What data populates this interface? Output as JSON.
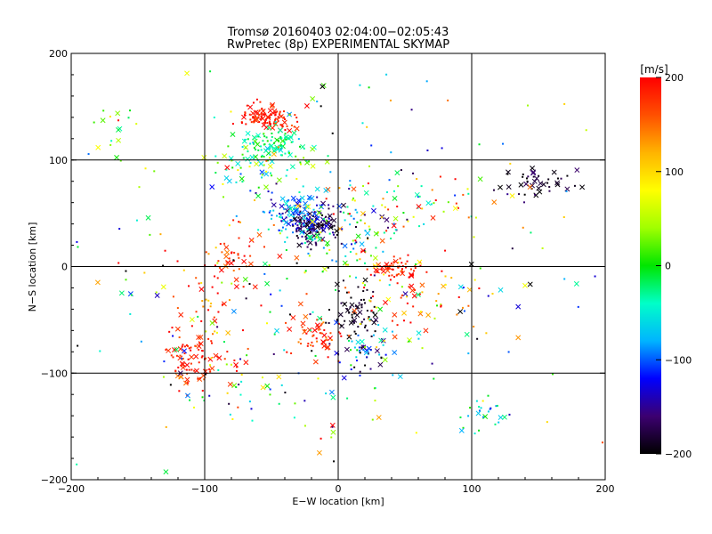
{
  "chart_data": {
    "type": "scatter",
    "title": "Tromsø 20160403 02:04:00−02:05:43",
    "subtitle": "RwPretec (8p) EXPERIMENTAL SKYMAP",
    "xlabel": "E−W location [km]",
    "ylabel": "N−S location [km]",
    "xlim": [
      -200,
      200
    ],
    "ylim": [
      -200,
      200
    ],
    "xticks": [
      "−200",
      "−100",
      "0",
      "100",
      "200"
    ],
    "yticks": [
      "−200",
      "−100",
      "0",
      "100",
      "200"
    ],
    "grid": true,
    "colorbar": {
      "unit": "[m/s]",
      "range": [
        -200,
        200
      ],
      "ticks": [
        "−200",
        "−100",
        "0",
        "100",
        "200"
      ],
      "colors": [
        "#000000",
        "#3c0070",
        "#0000ff",
        "#00b4ff",
        "#00ffc8",
        "#00e600",
        "#a0ff00",
        "#ffff00",
        "#ffb400",
        "#ff5000",
        "#ff0000"
      ]
    },
    "clusters": [
      {
        "x": -50,
        "y": 140,
        "sx": 10,
        "sy": 6,
        "n": 110,
        "v": 190,
        "vs": 15
      },
      {
        "x": -50,
        "y": 115,
        "sx": 12,
        "sy": 8,
        "n": 90,
        "v": -30,
        "vs": 20
      },
      {
        "x": -60,
        "y": 95,
        "sx": 20,
        "sy": 12,
        "n": 60,
        "v": 10,
        "vs": 60
      },
      {
        "x": -20,
        "y": 38,
        "sx": 9,
        "sy": 9,
        "n": 150,
        "v": -170,
        "vs": 25
      },
      {
        "x": -35,
        "y": 50,
        "sx": 12,
        "sy": 10,
        "n": 90,
        "v": -90,
        "vs": 30
      },
      {
        "x": 5,
        "y": 30,
        "sx": 22,
        "sy": 25,
        "n": 110,
        "v": -20,
        "vs": 90
      },
      {
        "x": 45,
        "y": -2,
        "sx": 8,
        "sy": 6,
        "n": 55,
        "v": 185,
        "vs": 15
      },
      {
        "x": 15,
        "y": -45,
        "sx": 10,
        "sy": 12,
        "n": 70,
        "v": -190,
        "vs": 10
      },
      {
        "x": -15,
        "y": -65,
        "sx": 10,
        "sy": 10,
        "n": 55,
        "v": 180,
        "vs": 20
      },
      {
        "x": 20,
        "y": -80,
        "sx": 10,
        "sy": 10,
        "n": 50,
        "v": -110,
        "vs": 60
      },
      {
        "x": -110,
        "y": -85,
        "sx": 9,
        "sy": 12,
        "n": 75,
        "v": 185,
        "vs": 15
      },
      {
        "x": -100,
        "y": -40,
        "sx": 15,
        "sy": 25,
        "n": 40,
        "v": 150,
        "vs": 50
      },
      {
        "x": -80,
        "y": 10,
        "sx": 10,
        "sy": 15,
        "n": 45,
        "v": 170,
        "vs": 30
      },
      {
        "x": 145,
        "y": 80,
        "sx": 14,
        "sy": 7,
        "n": 45,
        "v": -185,
        "vs": 15
      },
      {
        "x": 110,
        "y": -140,
        "sx": 8,
        "sy": 8,
        "n": 25,
        "v": -50,
        "vs": 40
      },
      {
        "x": 60,
        "y": 55,
        "sx": 20,
        "sy": 15,
        "n": 40,
        "v": 60,
        "vs": 100
      },
      {
        "x": 50,
        "y": -30,
        "sx": 25,
        "sy": 20,
        "n": 60,
        "v": 150,
        "vs": 60
      },
      {
        "x": -170,
        "y": 130,
        "sx": 10,
        "sy": 10,
        "n": 15,
        "v": 30,
        "vs": 40
      },
      {
        "x": -80,
        "y": -110,
        "sx": 25,
        "sy": 20,
        "n": 30,
        "v": 50,
        "vs": 120
      },
      {
        "x": 0,
        "y": 0,
        "sx": 110,
        "sy": 110,
        "n": 320,
        "v": 0,
        "vs": 130
      }
    ]
  }
}
